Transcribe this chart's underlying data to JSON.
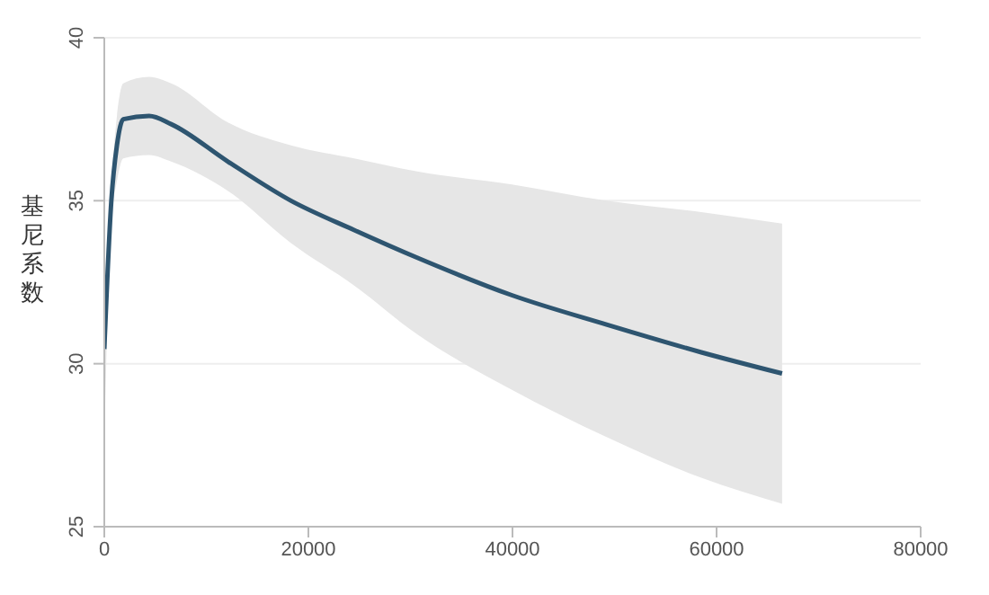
{
  "chart_data": {
    "type": "line",
    "ylabel": "基尼系数",
    "x": [
      0,
      690,
      1240,
      1860,
      4390,
      6550,
      12120,
      18300,
      24490,
      30670,
      39950,
      49220,
      58500,
      66420
    ],
    "series": [
      {
        "color": "#2e5570",
        "values": [
          30.45,
          35.0,
          36.7,
          37.5,
          37.6,
          37.35,
          36.2,
          35.0,
          34.1,
          33.25,
          32.1,
          31.2,
          30.35,
          29.7
        ],
        "upper": [
          30.6,
          35.5,
          37.6,
          38.6,
          38.8,
          38.6,
          37.4,
          36.7,
          36.3,
          35.9,
          35.5,
          35.0,
          34.65,
          34.3
        ],
        "lower": [
          27.4,
          34.4,
          35.6,
          36.3,
          36.4,
          36.2,
          35.3,
          33.7,
          32.4,
          30.9,
          29.2,
          27.75,
          26.5,
          25.7
        ]
      }
    ],
    "xlim": [
      0,
      80000
    ],
    "xticks": [
      0,
      20000,
      40000,
      60000,
      80000
    ],
    "ylim": [
      25,
      40
    ],
    "yticks": [
      25,
      30,
      35,
      40
    ],
    "grid": "y"
  }
}
